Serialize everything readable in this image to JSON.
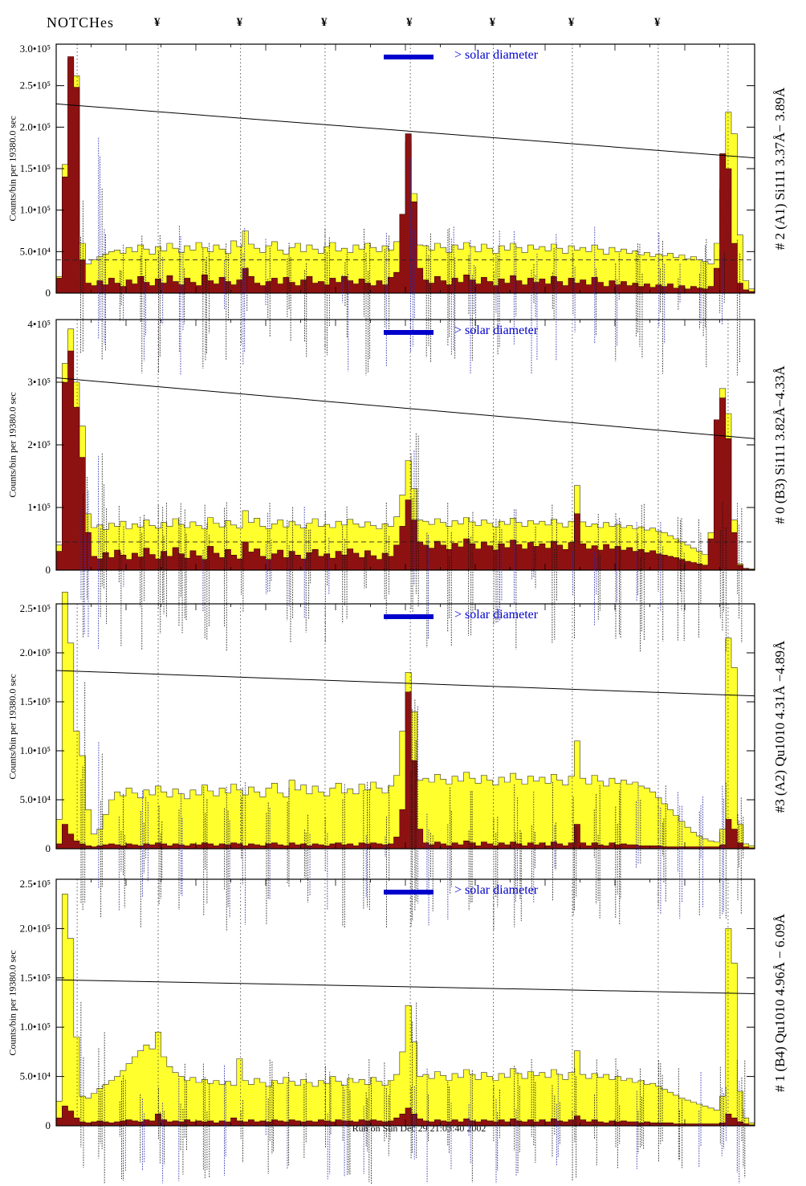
{
  "header": {
    "notches_label": "NOTCHes",
    "notch_symbol": "¥"
  },
  "footer": {
    "run_label": "Run on Sun Dec 29 21:03:40 2002"
  },
  "legend_label": "> solar diameter",
  "ylabel": "Counts/bin per  19380.0 sec",
  "colors": {
    "histogram_total": "#ffff2e",
    "histogram_background": "#8e1111",
    "accent_blue": "#0000cc",
    "annotation_blue": "#2222aa",
    "annotation_black": "#111111"
  },
  "notch_fractions": [
    0.146,
    0.264,
    0.385,
    0.507,
    0.626,
    0.739,
    0.862
  ],
  "limb_fractions": [
    0.03,
    0.962
  ],
  "chart_data": [
    {
      "type": "bar",
      "title_right": "# 2 (A1) Si111  3.37Å− 3.89Å",
      "value_scale": 1000,
      "ymax": 300,
      "ytick_values": [
        0,
        50,
        100,
        150,
        200,
        250,
        300
      ],
      "ytick_labels": [
        "0",
        "5.0•10⁴",
        "1.0•10⁵",
        "1.5•10⁵",
        "2.0•10⁵",
        "2.5•10⁵",
        "3.0•10⁵"
      ],
      "trend_line": {
        "start": 228,
        "end": 163
      },
      "dashed_level": 40,
      "series": [
        {
          "name": "total-counts",
          "color_key": "histogram_total",
          "values": [
            20,
            155,
            282,
            262,
            60,
            35,
            40,
            44,
            47,
            50,
            52,
            48,
            55,
            50,
            58,
            53,
            47,
            56,
            51,
            60,
            54,
            49,
            57,
            52,
            61,
            55,
            50,
            58,
            53,
            48,
            63,
            56,
            75,
            59,
            54,
            49,
            57,
            62,
            52,
            47,
            55,
            60,
            50,
            58,
            53,
            48,
            56,
            61,
            51,
            54,
            49,
            58,
            53,
            60,
            55,
            50,
            57,
            52,
            62,
            90,
            182,
            120,
            58,
            57,
            52,
            60,
            55,
            49,
            58,
            53,
            61,
            56,
            50,
            59,
            54,
            48,
            57,
            52,
            60,
            55,
            49,
            58,
            53,
            56,
            51,
            59,
            54,
            48,
            57,
            52,
            55,
            50,
            58,
            53,
            47,
            55,
            50,
            53,
            48,
            51,
            46,
            49,
            44,
            47,
            45,
            48,
            43,
            46,
            41,
            44,
            40,
            38,
            35,
            60,
            125,
            218,
            192,
            70,
            15,
            5
          ]
        },
        {
          "name": "background-counts",
          "color_key": "histogram_background",
          "values": [
            18,
            140,
            285,
            248,
            40,
            12,
            9,
            15,
            10,
            18,
            12,
            8,
            16,
            11,
            20,
            13,
            9,
            17,
            12,
            21,
            14,
            10,
            18,
            13,
            9,
            22,
            15,
            11,
            19,
            14,
            10,
            16,
            30,
            20,
            12,
            9,
            14,
            18,
            11,
            19,
            13,
            9,
            16,
            20,
            12,
            14,
            10,
            18,
            13,
            20,
            15,
            11,
            17,
            12,
            9,
            15,
            10,
            19,
            25,
            95,
            192,
            110,
            30,
            16,
            12,
            20,
            15,
            10,
            18,
            13,
            22,
            16,
            11,
            19,
            14,
            9,
            17,
            12,
            21,
            15,
            10,
            18,
            13,
            17,
            11,
            20,
            14,
            9,
            18,
            12,
            16,
            10,
            19,
            13,
            8,
            15,
            10,
            14,
            9,
            12,
            8,
            11,
            7,
            10,
            8,
            11,
            6,
            9,
            5,
            8,
            6,
            5,
            8,
            30,
            168,
            150,
            60,
            12,
            4,
            2
          ]
        }
      ]
    },
    {
      "type": "bar",
      "title_right": "# 0 (B3) Si111  3.82Å−4.33Å",
      "value_scale": 1000,
      "ymax": 400,
      "ytick_values": [
        0,
        100,
        200,
        300,
        400
      ],
      "ytick_labels": [
        "0",
        "1•10⁵",
        "2•10⁵",
        "3•10⁵",
        "4•10⁵"
      ],
      "trend_line": {
        "start": 307,
        "end": 210
      },
      "dashed_level": 45,
      "series": [
        {
          "name": "total-counts",
          "color_key": "histogram_total",
          "values": [
            40,
            330,
            385,
            300,
            230,
            90,
            68,
            72,
            65,
            75,
            70,
            78,
            66,
            74,
            69,
            80,
            71,
            67,
            76,
            70,
            82,
            73,
            68,
            77,
            71,
            66,
            84,
            75,
            69,
            79,
            72,
            67,
            95,
            76,
            83,
            70,
            66,
            74,
            80,
            69,
            78,
            72,
            67,
            75,
            82,
            70,
            73,
            68,
            78,
            72,
            81,
            74,
            69,
            77,
            71,
            66,
            74,
            70,
            85,
            120,
            175,
            130,
            80,
            78,
            73,
            82,
            76,
            70,
            79,
            74,
            84,
            77,
            71,
            80,
            75,
            69,
            78,
            73,
            83,
            76,
            70,
            79,
            74,
            78,
            72,
            81,
            75,
            69,
            78,
            135,
            77,
            70,
            74,
            68,
            76,
            70,
            73,
            68,
            71,
            66,
            69,
            64,
            67,
            62,
            60,
            55,
            50,
            45,
            40,
            35,
            30,
            25,
            60,
            230,
            290,
            250,
            80,
            10,
            3,
            2
          ]
        },
        {
          "name": "background-counts",
          "color_key": "histogram_background",
          "values": [
            30,
            300,
            350,
            260,
            180,
            60,
            22,
            18,
            28,
            20,
            32,
            24,
            17,
            27,
            21,
            35,
            25,
            18,
            30,
            22,
            36,
            26,
            19,
            31,
            23,
            17,
            38,
            27,
            20,
            33,
            24,
            18,
            45,
            29,
            34,
            22,
            17,
            26,
            32,
            20,
            30,
            24,
            18,
            28,
            33,
            22,
            26,
            19,
            30,
            24,
            34,
            27,
            20,
            31,
            23,
            17,
            27,
            22,
            40,
            70,
            112,
            80,
            45,
            40,
            35,
            46,
            40,
            33,
            43,
            37,
            50,
            42,
            34,
            45,
            39,
            32,
            42,
            36,
            48,
            41,
            34,
            44,
            38,
            42,
            35,
            46,
            40,
            33,
            44,
            90,
            42,
            34,
            39,
            32,
            41,
            34,
            38,
            32,
            36,
            30,
            33,
            28,
            31,
            26,
            24,
            22,
            20,
            17,
            14,
            12,
            10,
            8,
            50,
            240,
            275,
            210,
            60,
            8,
            2,
            1
          ]
        }
      ]
    },
    {
      "type": "bar",
      "title_right": "#3 (A2) Qu1010  4.31Å −4.89Å",
      "value_scale": 1000,
      "ymax": 250,
      "ytick_values": [
        0,
        50,
        100,
        150,
        200,
        250
      ],
      "ytick_labels": [
        "0",
        "5.0•10⁴",
        "1.0•10⁵",
        "1.5•10⁵",
        "2.0•10⁵",
        "2.5•10⁵"
      ],
      "trend_line": {
        "start": 182,
        "end": 156
      },
      "dashed_level": null,
      "series": [
        {
          "name": "total-counts",
          "color_key": "histogram_total",
          "values": [
            30,
            262,
            210,
            120,
            95,
            40,
            15,
            20,
            35,
            50,
            58,
            54,
            62,
            57,
            52,
            60,
            55,
            64,
            58,
            53,
            61,
            56,
            51,
            60,
            55,
            65,
            59,
            54,
            62,
            57,
            66,
            60,
            55,
            63,
            58,
            53,
            62,
            67,
            57,
            53,
            70,
            60,
            65,
            56,
            64,
            58,
            54,
            62,
            67,
            57,
            61,
            56,
            66,
            60,
            68,
            62,
            57,
            64,
            75,
            120,
            180,
            140,
            70,
            72,
            68,
            76,
            71,
            66,
            74,
            69,
            78,
            72,
            67,
            75,
            70,
            65,
            73,
            68,
            77,
            71,
            66,
            74,
            69,
            73,
            67,
            76,
            70,
            65,
            74,
            110,
            72,
            66,
            75,
            69,
            64,
            72,
            67,
            70,
            66,
            68,
            64,
            62,
            58,
            52,
            46,
            40,
            34,
            28,
            22,
            17,
            13,
            10,
            8,
            7,
            20,
            215,
            185,
            25,
            5,
            3
          ]
        },
        {
          "name": "background-counts",
          "color_key": "histogram_background",
          "values": [
            5,
            25,
            15,
            8,
            5,
            3,
            2,
            3,
            4,
            5,
            4,
            3,
            5,
            4,
            3,
            5,
            4,
            6,
            5,
            3,
            5,
            4,
            3,
            5,
            4,
            6,
            5,
            3,
            5,
            4,
            6,
            5,
            3,
            5,
            4,
            3,
            5,
            6,
            4,
            3,
            6,
            4,
            5,
            3,
            5,
            4,
            3,
            5,
            6,
            4,
            5,
            3,
            6,
            5,
            6,
            5,
            4,
            5,
            12,
            40,
            160,
            90,
            20,
            6,
            4,
            7,
            5,
            3,
            6,
            4,
            8,
            6,
            3,
            7,
            5,
            3,
            6,
            4,
            7,
            5,
            3,
            6,
            4,
            6,
            3,
            7,
            5,
            3,
            6,
            25,
            6,
            3,
            6,
            4,
            3,
            6,
            4,
            5,
            4,
            4,
            3,
            3,
            3,
            3,
            2,
            2,
            2,
            2,
            2,
            2,
            2,
            2,
            2,
            2,
            4,
            30,
            20,
            6,
            2,
            1
          ]
        }
      ]
    },
    {
      "type": "bar",
      "title_right": "# 1 (B4) Qu1010 4.96Å − 6.09Å",
      "value_scale": 1000,
      "ymax": 250,
      "ytick_values": [
        0,
        50,
        100,
        150,
        200,
        250
      ],
      "ytick_labels": [
        "0",
        "5.0•10⁴",
        "1.0•10⁵",
        "1.5•10⁵",
        "2.0•10⁵",
        "2.5•10⁵"
      ],
      "trend_line": {
        "start": 148,
        "end": 134
      },
      "dashed_level": null,
      "series": [
        {
          "name": "total-counts",
          "color_key": "histogram_total",
          "values": [
            25,
            235,
            190,
            90,
            30,
            28,
            33,
            38,
            42,
            46,
            50,
            56,
            63,
            70,
            76,
            82,
            78,
            95,
            70,
            60,
            54,
            50,
            46,
            49,
            44,
            47,
            43,
            46,
            42,
            45,
            41,
            68,
            46,
            42,
            48,
            44,
            40,
            46,
            43,
            49,
            45,
            41,
            47,
            44,
            40,
            46,
            43,
            50,
            45,
            41,
            48,
            44,
            47,
            42,
            49,
            45,
            41,
            46,
            52,
            75,
            122,
            85,
            50,
            52,
            48,
            55,
            51,
            46,
            53,
            49,
            57,
            52,
            47,
            54,
            50,
            46,
            53,
            49,
            58,
            53,
            48,
            55,
            51,
            54,
            49,
            57,
            52,
            47,
            54,
            76,
            52,
            48,
            53,
            49,
            52,
            47,
            50,
            46,
            48,
            44,
            46,
            42,
            43,
            40,
            37,
            34,
            31,
            28,
            26,
            24,
            22,
            20,
            18,
            16,
            30,
            200,
            165,
            35,
            8,
            3
          ]
        },
        {
          "name": "background-counts",
          "color_key": "histogram_background",
          "values": [
            8,
            20,
            15,
            8,
            4,
            3,
            4,
            5,
            4,
            3,
            4,
            5,
            6,
            5,
            4,
            6,
            5,
            12,
            6,
            4,
            5,
            4,
            6,
            4,
            5,
            4,
            5,
            3,
            5,
            4,
            8,
            5,
            4,
            6,
            4,
            5,
            4,
            6,
            5,
            4,
            6,
            5,
            4,
            5,
            4,
            6,
            5,
            4,
            6,
            5,
            5,
            4,
            6,
            5,
            6,
            5,
            4,
            5,
            8,
            12,
            18,
            12,
            7,
            5,
            4,
            6,
            5,
            4,
            6,
            4,
            7,
            5,
            4,
            6,
            5,
            4,
            6,
            4,
            7,
            5,
            4,
            6,
            4,
            6,
            4,
            7,
            5,
            4,
            6,
            10,
            6,
            4,
            6,
            4,
            3,
            5,
            4,
            5,
            4,
            4,
            3,
            4,
            3,
            3,
            3,
            3,
            2,
            2,
            2,
            2,
            2,
            2,
            2,
            2,
            3,
            12,
            8,
            4,
            2,
            1
          ]
        }
      ]
    }
  ]
}
